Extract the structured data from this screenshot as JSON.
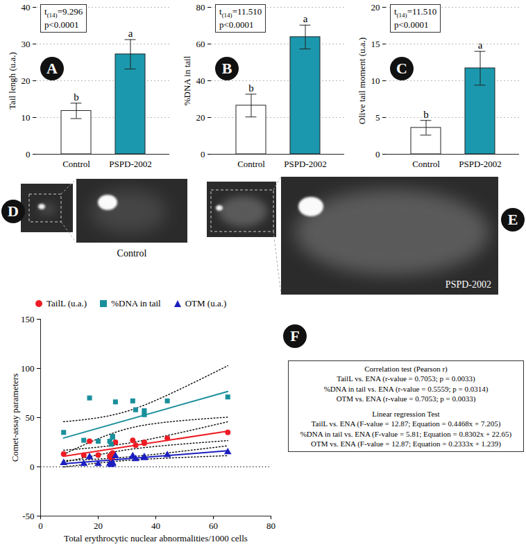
{
  "chart_data": [
    {
      "panel": "A",
      "type": "bar",
      "categories": [
        "Control",
        "PSPD-2002"
      ],
      "values": [
        11.8,
        27.2
      ],
      "errors": [
        2.1,
        4.0
      ],
      "colors": [
        "#ffffff",
        "#1b98ad"
      ],
      "group_letters": [
        "b",
        "a"
      ],
      "ylabel": "Tail lengh (u.a.)",
      "ylim": [
        0,
        40
      ],
      "yticks": [
        0,
        10,
        20,
        30,
        40
      ],
      "grid": true,
      "annotation": [
        "t(14)=9.296",
        "p<0.0001"
      ]
    },
    {
      "panel": "B",
      "type": "bar",
      "categories": [
        "Control",
        "PSPD-2002"
      ],
      "values": [
        26.5,
        63.8
      ],
      "errors": [
        6.2,
        6.5
      ],
      "colors": [
        "#ffffff",
        "#1b98ad"
      ],
      "group_letters": [
        "b",
        "a"
      ],
      "ylabel": "%DNA in tail",
      "ylim": [
        0,
        80
      ],
      "yticks": [
        0,
        20,
        40,
        60,
        80
      ],
      "grid": true,
      "annotation": [
        "t(14)=11.510",
        "p<0.0001"
      ]
    },
    {
      "panel": "C",
      "type": "bar",
      "categories": [
        "Control",
        "PSPD-2002"
      ],
      "values": [
        3.6,
        11.7
      ],
      "errors": [
        1.0,
        2.3
      ],
      "colors": [
        "#ffffff",
        "#1b98ad"
      ],
      "group_letters": [
        "b",
        "a"
      ],
      "ylabel": "Olive tail moment (u.a.)",
      "ylim": [
        0,
        20
      ],
      "yticks": [
        0,
        5,
        10,
        15,
        20
      ],
      "grid": true,
      "annotation": [
        "t(14)=11.510",
        "p<0.0001"
      ]
    },
    {
      "panel": "F",
      "type": "scatter",
      "xlabel": "Total erythrocytic nuclear abnormalities/1000 cells",
      "ylabel": "Comet-assay parameters",
      "xlim": [
        0,
        80
      ],
      "xticks": [
        0,
        20,
        40,
        60,
        80
      ],
      "ylim": [
        -50,
        150
      ],
      "yticks": [
        -50,
        0,
        50,
        100,
        150
      ],
      "grid": false,
      "legend": "top",
      "x": [
        8,
        15,
        17,
        20,
        24,
        24.5,
        25,
        25,
        26,
        32,
        33,
        36,
        36,
        44,
        65
      ],
      "series": [
        {
          "name": "TailL (u.a.)",
          "color": "#ee1c24",
          "marker": "circle",
          "values": [
            13,
            12,
            26,
            12,
            11,
            9,
            14,
            10,
            25,
            27,
            22,
            24,
            25,
            29,
            35
          ],
          "regression": {
            "slope": 0.4468,
            "intercept": 7.205
          }
        },
        {
          "name": "%DNA in tail",
          "color": "#1a8f9c",
          "marker": "square",
          "values": [
            35,
            27,
            70,
            26,
            26,
            23,
            30,
            31,
            66,
            67,
            58,
            57,
            53,
            67,
            71
          ],
          "regression": {
            "slope": 0.8302,
            "intercept": 22.65
          }
        },
        {
          "name": "OTM (u.a.)",
          "color": "#1c1fbf",
          "marker": "triangle",
          "values": [
            4,
            3,
            10,
            3,
            3,
            2,
            4,
            3,
            11,
            11,
            8,
            9,
            10,
            12,
            15
          ],
          "regression": {
            "slope": 0.2333,
            "intercept": 1.239
          }
        }
      ],
      "stats_box": {
        "correlation_title": "Correlation test (Pearson r)",
        "correlation_lines": [
          "TailL vs. ENA (r-value = 0.7053; p = 0.0033)",
          "%DNA in tail vs. ENA (r-value = 0.5559; p = 0.0314)",
          "OTM vs. ENA (r-value = 0.7053; p = 0.0033)"
        ],
        "regression_title": "Linear regression Test",
        "regression_lines": [
          "TailL vs. ENA (F-value = 12.87; Equation = 0.4468x + 7.205)",
          "%DNA in tail vs. ENA (F-value = 5.81; Equation = 0.8302x + 22.65)",
          "OTM vs. ENA (F-value = 12.87; Equation = 0.2333x + 1.239)"
        ]
      }
    }
  ],
  "images": [
    {
      "panel": "D",
      "label": "Control"
    },
    {
      "panel": "E",
      "label": "PSPD-2002"
    }
  ]
}
